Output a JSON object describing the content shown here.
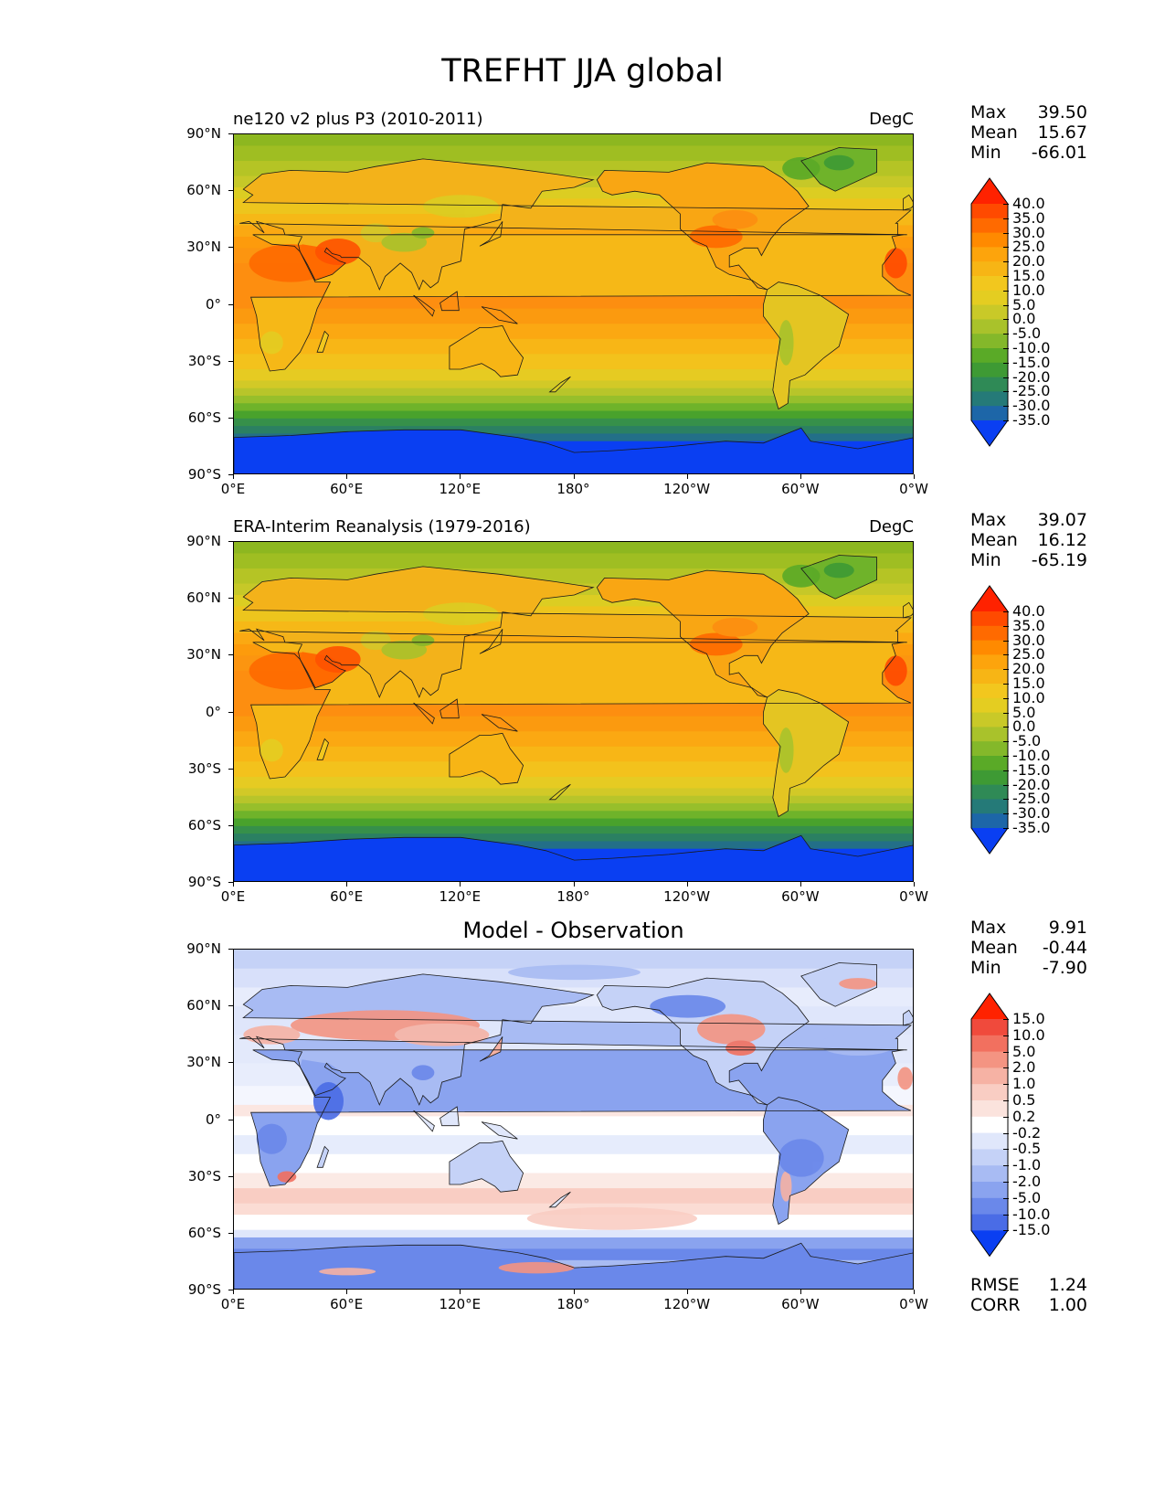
{
  "title": "TREFHT JJA global",
  "lat_ticks": [
    "90°N",
    "60°N",
    "30°N",
    "0°",
    "30°S",
    "60°S",
    "90°S"
  ],
  "lon_ticks": [
    "0°E",
    "60°E",
    "120°E",
    "180°",
    "120°W",
    "60°W",
    "0°W"
  ],
  "panels": [
    {
      "title_left": "ne120 v2 plus P3 (2010-2011)",
      "title_right": "DegC",
      "title_center": "",
      "stats": [
        {
          "label": "Max",
          "value": "39.50"
        },
        {
          "label": "Mean",
          "value": "15.67"
        },
        {
          "label": "Min",
          "value": "-66.01"
        }
      ],
      "colorbar": {
        "levels": [
          "40.0",
          "35.0",
          "30.0",
          "25.0",
          "20.0",
          "15.0",
          "10.0",
          "5.0",
          "0.0",
          "-5.0",
          "-10.0",
          "-15.0",
          "-20.0",
          "-25.0",
          "-30.0",
          "-35.0"
        ],
        "colors": [
          "#ff2200",
          "#ff4a00",
          "#ff6a00",
          "#ff8a00",
          "#fda40c",
          "#f7b515",
          "#f2c71e",
          "#e4cd21",
          "#c9c928",
          "#a9c22b",
          "#84b82a",
          "#5aaa27",
          "#3e9a34",
          "#2f8a56",
          "#257a78",
          "#1d66a8",
          "#0a3ff2"
        ]
      },
      "map_type": "temperature",
      "extra": []
    },
    {
      "title_left": "ERA-Interim Reanalysis (1979-2016)",
      "title_right": "DegC",
      "title_center": "",
      "stats": [
        {
          "label": "Max",
          "value": "39.07"
        },
        {
          "label": "Mean",
          "value": "16.12"
        },
        {
          "label": "Min",
          "value": "-65.19"
        }
      ],
      "colorbar": {
        "levels": [
          "40.0",
          "35.0",
          "30.0",
          "25.0",
          "20.0",
          "15.0",
          "10.0",
          "5.0",
          "0.0",
          "-5.0",
          "-10.0",
          "-15.0",
          "-20.0",
          "-25.0",
          "-30.0",
          "-35.0"
        ],
        "colors": [
          "#ff2200",
          "#ff4a00",
          "#ff6a00",
          "#ff8a00",
          "#fda40c",
          "#f7b515",
          "#f2c71e",
          "#e4cd21",
          "#c9c928",
          "#a9c22b",
          "#84b82a",
          "#5aaa27",
          "#3e9a34",
          "#2f8a56",
          "#257a78",
          "#1d66a8",
          "#0a3ff2"
        ]
      },
      "map_type": "temperature",
      "extra": []
    },
    {
      "title_left": "",
      "title_right": "",
      "title_center": "Model - Observation",
      "stats": [
        {
          "label": "Max",
          "value": "9.91"
        },
        {
          "label": "Mean",
          "value": "-0.44"
        },
        {
          "label": "Min",
          "value": "-7.90"
        }
      ],
      "colorbar": {
        "levels": [
          "15.0",
          "10.0",
          "5.0",
          "2.0",
          "1.0",
          "0.5",
          "0.2",
          "-0.2",
          "-0.5",
          "-1.0",
          "-2.0",
          "-5.0",
          "-10.0",
          "-15.0"
        ],
        "colors": [
          "#ff2200",
          "#f04a3c",
          "#f2705f",
          "#f49482",
          "#f6b2a4",
          "#f9cdc3",
          "#fbe3dd",
          "#ffffff",
          "#e0e7fb",
          "#c5d2f7",
          "#a8bbf3",
          "#8aa3ef",
          "#6a88ea",
          "#4a6ce6",
          "#0a3ff2"
        ]
      },
      "map_type": "difference",
      "extra": [
        {
          "label": "RMSE",
          "value": "1.24"
        },
        {
          "label": "CORR",
          "value": "1.00"
        }
      ]
    }
  ]
}
